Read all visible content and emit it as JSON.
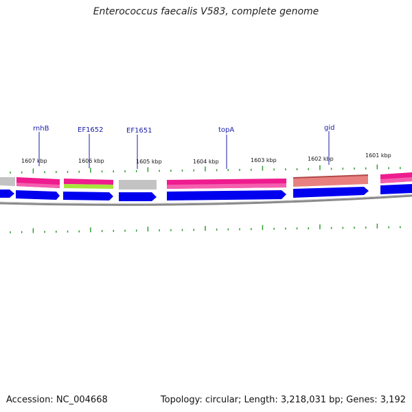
{
  "title": "Enterococcus faecalis V583, complete genome",
  "footer": {
    "accession": "Accession: NC_004668",
    "summary": "Topology: circular; Length: 3,218,031 bp; Genes: 3,192"
  },
  "kbp_labels": [
    "1607 kbp",
    "1606 kbp",
    "1605 kbp",
    "1604 kbp",
    "1603 kbp",
    "1602 kbp",
    "1601 kbp"
  ],
  "gene_labels": [
    "rnhB",
    "EF1652",
    "EF1651",
    "topA",
    "gid"
  ],
  "colors": {
    "forward_strand": "#ee1c8e",
    "reverse_strand": "#0000ee",
    "hypothetical": "#c3c3c3",
    "rna": "#a6e63c",
    "pseudo_salmon": "#e88080",
    "backbone": "#8a8a8a",
    "tick": "#2e9b2e"
  }
}
